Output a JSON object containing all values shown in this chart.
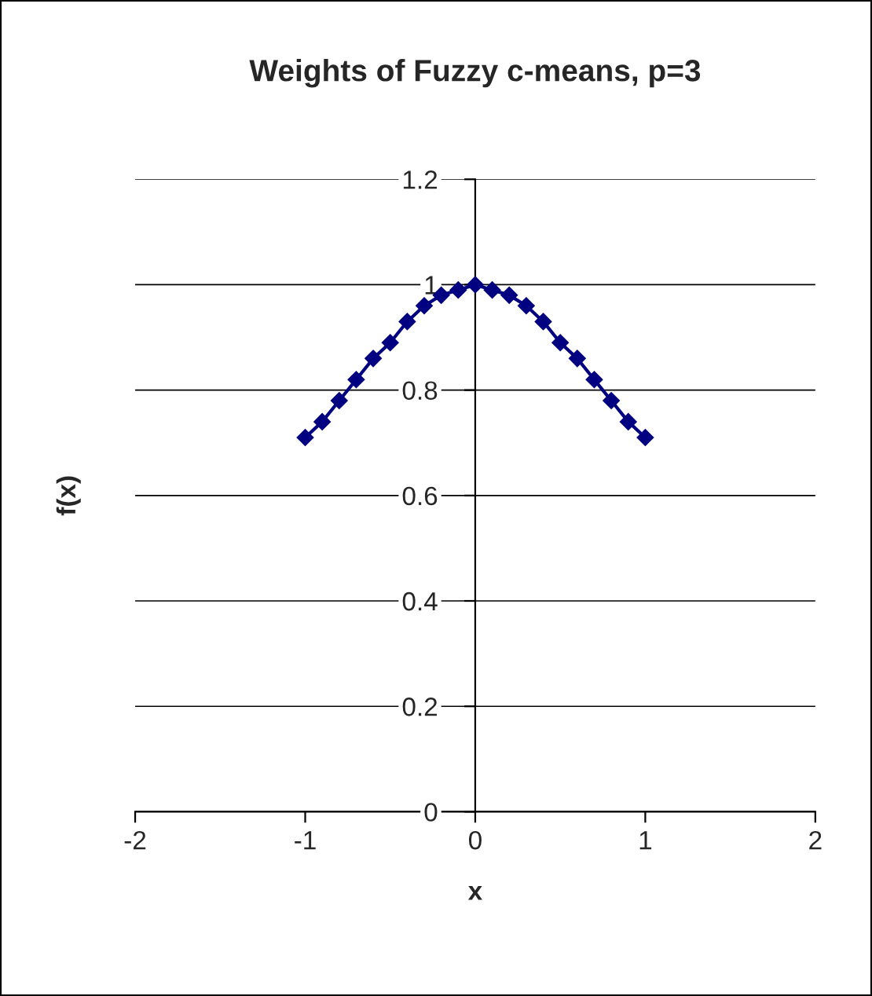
{
  "chart_data": {
    "type": "line",
    "title": "Weights of Fuzzy c-means, p=3",
    "xlabel": "x",
    "ylabel": "f(x)",
    "x": [
      -1,
      -0.9,
      -0.8,
      -0.7,
      -0.6,
      -0.5,
      -0.4,
      -0.3,
      -0.2,
      -0.1,
      0,
      0.1,
      0.2,
      0.3,
      0.4,
      0.5,
      0.6,
      0.7,
      0.8,
      0.9,
      1
    ],
    "series": [
      {
        "color": "#000080",
        "values": [
          0.71,
          0.74,
          0.78,
          0.82,
          0.86,
          0.89,
          0.93,
          0.96,
          0.98,
          0.99,
          1.0,
          0.99,
          0.98,
          0.96,
          0.93,
          0.89,
          0.86,
          0.82,
          0.78,
          0.74,
          0.71
        ]
      }
    ],
    "xlim": [
      -2,
      2
    ],
    "ylim": [
      0,
      1.2
    ],
    "xticks": [
      -2,
      -1,
      0,
      1,
      2
    ],
    "yticks": [
      0,
      0.2,
      0.4,
      0.6,
      0.8,
      1,
      1.2
    ],
    "grid": "y",
    "marker": "diamond",
    "line_style": "solid",
    "legend": false
  }
}
